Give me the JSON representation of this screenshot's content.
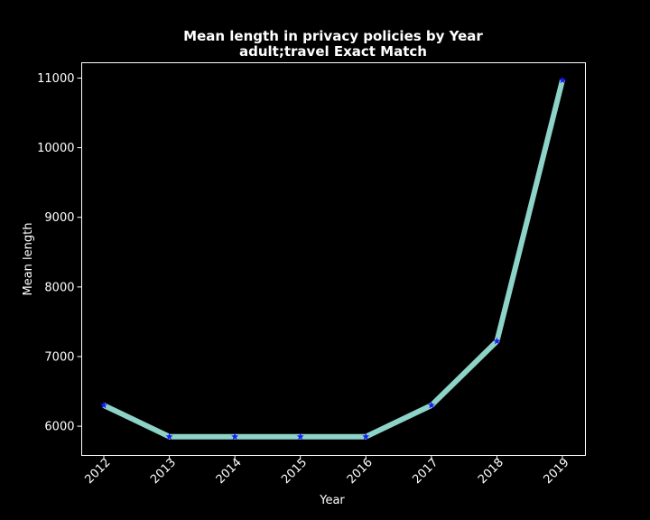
{
  "chart_data": {
    "type": "line",
    "title": "Mean length in privacy policies by Year",
    "subtitle": "adult;travel Exact Match",
    "xlabel": "Year",
    "ylabel": "Mean length",
    "categories": [
      "2012",
      "2013",
      "2014",
      "2015",
      "2016",
      "2017",
      "2018",
      "2019"
    ],
    "values": [
      6300,
      5850,
      5850,
      5850,
      5850,
      6300,
      7220,
      10970
    ],
    "ylim": [
      5580,
      11220
    ],
    "yticks": [
      6000,
      7000,
      8000,
      9000,
      10000,
      11000
    ],
    "grid": false,
    "legend": "none",
    "colors": {
      "background": "#000000",
      "line": "#8dd3c7",
      "marker": "#1a1aff",
      "text": "#ffffff"
    },
    "marker": "star-icon"
  }
}
